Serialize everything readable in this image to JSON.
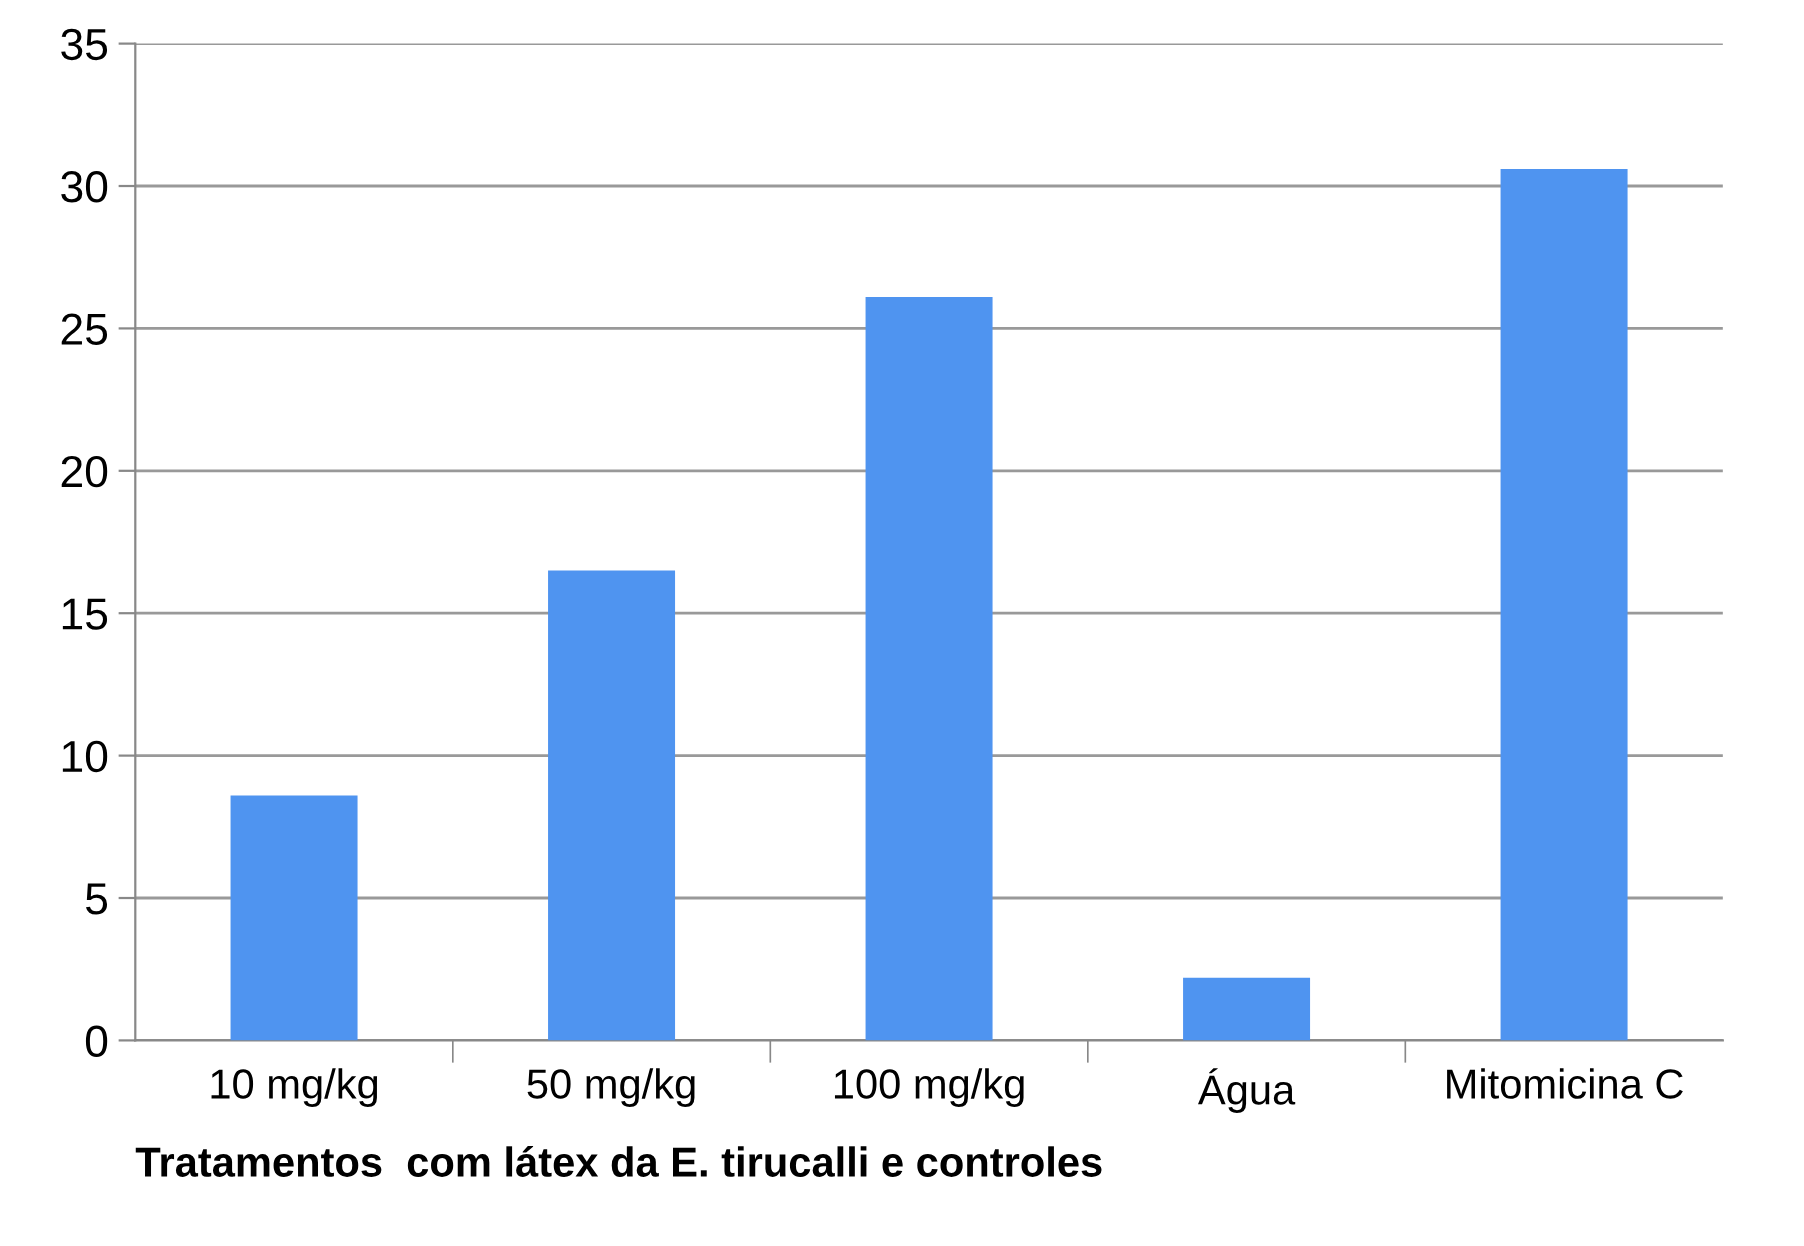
{
  "chart_data": {
    "type": "bar",
    "xlabel": "Tratamentos  com látex da E. tirucalli e controles",
    "categories": [
      "10 mg/kg",
      "50 mg/kg",
      "100 mg/kg",
      "Água",
      "Mitomicina C"
    ],
    "values": [
      8.6,
      16.5,
      26.1,
      2.2,
      30.6
    ],
    "color": "#4f94f0",
    "ylim": [
      0,
      35
    ],
    "yticks": [
      0,
      5,
      10,
      15,
      20,
      25,
      30,
      35
    ],
    "grid": "y",
    "legend": false
  }
}
